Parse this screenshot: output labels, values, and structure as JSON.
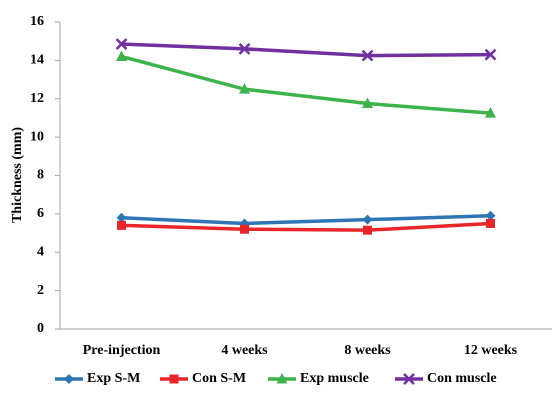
{
  "chart_data": {
    "type": "line",
    "y_label": "Thickness (mm)",
    "categories": [
      "Pre-injection",
      "4 weeks",
      "8 weeks",
      "12 weeks"
    ],
    "series": [
      {
        "name": "Exp S-M",
        "color": "#2e75b6",
        "marker": "diamond",
        "values": [
          5.8,
          5.5,
          5.7,
          5.9
        ]
      },
      {
        "name": "Con S-M",
        "color": "#e8262a",
        "marker": "square",
        "values": [
          5.4,
          5.2,
          5.15,
          5.5
        ]
      },
      {
        "name": "Exp muscle",
        "color": "#3cb44b",
        "marker": "triangle",
        "values": [
          14.2,
          12.5,
          11.75,
          11.25
        ]
      },
      {
        "name": "Con muscle",
        "color": "#7030a0",
        "marker": "x",
        "values": [
          14.85,
          14.6,
          14.25,
          14.3
        ]
      }
    ],
    "ylim": [
      0,
      16
    ],
    "yticks": [
      0,
      2,
      4,
      6,
      8,
      10,
      12,
      14,
      16
    ],
    "grid": false,
    "legend": "bottom"
  }
}
